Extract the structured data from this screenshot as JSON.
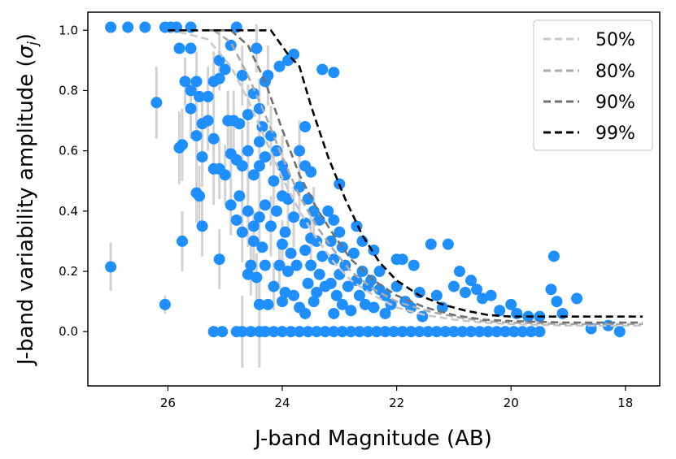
{
  "chart_data": {
    "type": "scatter",
    "xlabel": "J-band Magnitude (AB)",
    "ylabel": "J-band variability amplitude (σ_j)",
    "ylabel_base": "J-band variability amplitude (",
    "ylabel_sigma": "σ",
    "ylabel_sub": "j",
    "ylabel_close": ")",
    "xlim": [
      27.4,
      17.4
    ],
    "ylim": [
      -0.18,
      1.06
    ],
    "xticks": [
      26,
      24,
      22,
      20,
      18
    ],
    "xtick_labels": [
      "26",
      "24",
      "22",
      "20",
      "18"
    ],
    "yticks": [
      0.0,
      0.2,
      0.4,
      0.6,
      0.8,
      1.0
    ],
    "ytick_labels": [
      "0.0",
      "0.2",
      "0.4",
      "0.6",
      "0.8",
      "1.0"
    ],
    "point_color": "#1f8fff",
    "errorbar_color": "#d3d3d3",
    "legend_position": "top-right",
    "curves": [
      {
        "name": "50%",
        "color": "#c8c8c8",
        "x": [
          26.0,
          25.7,
          25.3,
          24.9,
          24.6,
          24.3,
          24.0,
          23.7,
          23.4,
          23.1,
          22.8,
          22.4,
          22.0,
          21.5,
          21.0,
          20.5,
          20.0,
          19.0,
          17.7
        ],
        "y": [
          1.0,
          0.99,
          0.97,
          0.88,
          0.77,
          0.64,
          0.51,
          0.4,
          0.31,
          0.23,
          0.17,
          0.12,
          0.08,
          0.055,
          0.04,
          0.03,
          0.025,
          0.02,
          0.02
        ]
      },
      {
        "name": "80%",
        "color": "#a9a9a9",
        "x": [
          25.6,
          25.2,
          24.9,
          24.6,
          24.3,
          24.0,
          23.7,
          23.4,
          23.1,
          22.8,
          22.4,
          22.0,
          21.5,
          21.0,
          20.5,
          20.0,
          19.0,
          17.7
        ],
        "y": [
          1.0,
          1.0,
          0.96,
          0.85,
          0.72,
          0.58,
          0.45,
          0.35,
          0.27,
          0.2,
          0.14,
          0.1,
          0.07,
          0.05,
          0.035,
          0.03,
          0.025,
          0.025
        ]
      },
      {
        "name": "90%",
        "color": "#707070",
        "x": [
          25.3,
          24.9,
          24.6,
          24.3,
          24.0,
          23.7,
          23.4,
          23.1,
          22.8,
          22.4,
          22.0,
          21.5,
          21.0,
          20.5,
          20.0,
          19.0,
          17.7
        ],
        "y": [
          1.0,
          1.0,
          0.95,
          0.83,
          0.67,
          0.52,
          0.41,
          0.32,
          0.24,
          0.17,
          0.12,
          0.08,
          0.055,
          0.04,
          0.035,
          0.03,
          0.03
        ]
      },
      {
        "name": "99%",
        "color": "#000000",
        "x": [
          26.0,
          24.2,
          23.9,
          23.7,
          23.5,
          23.2,
          22.9,
          22.6,
          22.3,
          22.0,
          21.6,
          21.2,
          20.8,
          20.4,
          20.0,
          19.0,
          17.7
        ],
        "y": [
          1.0,
          1.0,
          0.92,
          0.88,
          0.75,
          0.58,
          0.44,
          0.32,
          0.23,
          0.17,
          0.12,
          0.09,
          0.07,
          0.055,
          0.05,
          0.05,
          0.05
        ]
      }
    ],
    "points": [
      {
        "x": 27.0,
        "y": 1.01
      },
      {
        "x": 26.7,
        "y": 1.01
      },
      {
        "x": 26.4,
        "y": 1.01
      },
      {
        "x": 26.05,
        "y": 1.01
      },
      {
        "x": 25.95,
        "y": 1.01
      },
      {
        "x": 25.85,
        "y": 1.01
      },
      {
        "x": 25.6,
        "y": 1.01
      },
      {
        "x": 24.8,
        "y": 1.01
      },
      {
        "x": 27.0,
        "y": 0.215,
        "e": 0.08
      },
      {
        "x": 26.2,
        "y": 0.76,
        "e": 0.12
      },
      {
        "x": 26.05,
        "y": 0.09,
        "e": 0.03
      },
      {
        "x": 25.75,
        "y": 0.3,
        "e": 0.1
      },
      {
        "x": 25.8,
        "y": 0.94
      },
      {
        "x": 25.6,
        "y": 0.94
      },
      {
        "x": 25.7,
        "y": 0.83,
        "e": 0.08
      },
      {
        "x": 25.6,
        "y": 0.8
      },
      {
        "x": 25.5,
        "y": 0.83,
        "e": 0.1
      },
      {
        "x": 25.45,
        "y": 0.78
      },
      {
        "x": 25.3,
        "y": 0.78,
        "e": 0.1
      },
      {
        "x": 25.6,
        "y": 0.74,
        "e": 0.1
      },
      {
        "x": 25.4,
        "y": 0.69,
        "e": 0.1
      },
      {
        "x": 25.3,
        "y": 0.7,
        "e": 0.1
      },
      {
        "x": 25.5,
        "y": 0.65,
        "e": 0.1
      },
      {
        "x": 25.2,
        "y": 0.64,
        "e": 0.1
      },
      {
        "x": 25.8,
        "y": 0.61,
        "e": 0.12
      },
      {
        "x": 25.75,
        "y": 0.62,
        "e": 0.12
      },
      {
        "x": 25.4,
        "y": 0.58,
        "e": 0.1
      },
      {
        "x": 25.2,
        "y": 0.54,
        "e": 0.12
      },
      {
        "x": 25.1,
        "y": 0.54,
        "e": 0.1
      },
      {
        "x": 25.5,
        "y": 0.46,
        "e": 0.1
      },
      {
        "x": 25.45,
        "y": 0.45,
        "e": 0.1
      },
      {
        "x": 25.4,
        "y": 0.35,
        "e": 0.1
      },
      {
        "x": 25.1,
        "y": 0.24,
        "e": 0.1
      },
      {
        "x": 25.1,
        "y": 0.9,
        "e": 0.1
      },
      {
        "x": 25.0,
        "y": 0.87
      },
      {
        "x": 24.9,
        "y": 0.95
      },
      {
        "x": 24.7,
        "y": 0.85,
        "e": 0.1
      },
      {
        "x": 25.1,
        "y": 0.84
      },
      {
        "x": 25.2,
        "y": 0.83,
        "e": 0.1
      },
      {
        "x": 24.85,
        "y": 0.7,
        "e": 0.1
      },
      {
        "x": 24.75,
        "y": 0.69
      },
      {
        "x": 24.95,
        "y": 0.7,
        "e": 0.1
      },
      {
        "x": 24.6,
        "y": 0.72,
        "e": 0.1
      },
      {
        "x": 24.6,
        "y": 0.6,
        "e": 0.1
      },
      {
        "x": 24.9,
        "y": 0.59,
        "e": 0.1
      },
      {
        "x": 24.8,
        "y": 0.57
      },
      {
        "x": 24.7,
        "y": 0.55,
        "e": 0.12
      },
      {
        "x": 25.0,
        "y": 0.52,
        "e": 0.1
      },
      {
        "x": 24.5,
        "y": 0.52
      },
      {
        "x": 24.4,
        "y": 0.55,
        "e": 0.12
      },
      {
        "x": 24.3,
        "y": 0.58
      },
      {
        "x": 24.9,
        "y": 0.42,
        "e": 0.1
      },
      {
        "x": 24.75,
        "y": 0.45
      },
      {
        "x": 24.6,
        "y": 0.4,
        "e": 0.12
      },
      {
        "x": 24.8,
        "y": 0.37
      },
      {
        "x": 24.7,
        "y": 0.33,
        "e": 0.1
      },
      {
        "x": 24.5,
        "y": 0.35
      },
      {
        "x": 24.4,
        "y": 0.38,
        "e": 0.12
      },
      {
        "x": 24.3,
        "y": 0.42
      },
      {
        "x": 24.2,
        "y": 0.35,
        "e": 0.1
      },
      {
        "x": 24.5,
        "y": 0.3,
        "e": 0.1
      },
      {
        "x": 24.35,
        "y": 0.28
      },
      {
        "x": 24.55,
        "y": 0.22,
        "e": 0.1
      },
      {
        "x": 24.45,
        "y": 0.18,
        "e": 0.08
      },
      {
        "x": 24.6,
        "y": 0.19
      },
      {
        "x": 24.4,
        "y": 0.09,
        "e": 0.1
      },
      {
        "x": 24.25,
        "y": 0.09
      },
      {
        "x": 24.3,
        "y": 0.22
      },
      {
        "x": 24.4,
        "y": 0.63,
        "e": 0.12
      },
      {
        "x": 24.35,
        "y": 0.68
      },
      {
        "x": 24.4,
        "y": 0.74,
        "e": 0.1
      },
      {
        "x": 24.5,
        "y": 0.79
      },
      {
        "x": 24.25,
        "y": 0.85,
        "e": 0.1
      },
      {
        "x": 24.3,
        "y": 0.83
      },
      {
        "x": 24.05,
        "y": 0.88
      },
      {
        "x": 23.9,
        "y": 0.9
      },
      {
        "x": 23.8,
        "y": 0.92
      },
      {
        "x": 24.45,
        "y": 0.94,
        "e": 0.08
      },
      {
        "x": 24.2,
        "y": 0.65,
        "e": 0.1
      },
      {
        "x": 24.1,
        "y": 0.6
      },
      {
        "x": 24.0,
        "y": 0.55,
        "e": 0.1
      },
      {
        "x": 23.95,
        "y": 0.52
      },
      {
        "x": 24.15,
        "y": 0.5,
        "e": 0.1
      },
      {
        "x": 24.0,
        "y": 0.45
      },
      {
        "x": 23.9,
        "y": 0.44,
        "e": 0.1
      },
      {
        "x": 24.1,
        "y": 0.4
      },
      {
        "x": 23.8,
        "y": 0.38,
        "e": 0.1
      },
      {
        "x": 23.95,
        "y": 0.33
      },
      {
        "x": 24.0,
        "y": 0.29,
        "e": 0.08
      },
      {
        "x": 23.85,
        "y": 0.26
      },
      {
        "x": 24.05,
        "y": 0.22,
        "e": 0.08
      },
      {
        "x": 23.9,
        "y": 0.2
      },
      {
        "x": 23.75,
        "y": 0.22
      },
      {
        "x": 24.15,
        "y": 0.15,
        "e": 0.08
      },
      {
        "x": 23.95,
        "y": 0.13
      },
      {
        "x": 24.0,
        "y": 0.1
      },
      {
        "x": 23.8,
        "y": 0.12
      },
      {
        "x": 23.7,
        "y": 0.08
      },
      {
        "x": 23.6,
        "y": 0.68
      },
      {
        "x": 23.7,
        "y": 0.6,
        "e": 0.1
      },
      {
        "x": 23.6,
        "y": 0.55
      },
      {
        "x": 23.5,
        "y": 0.53
      },
      {
        "x": 23.7,
        "y": 0.48,
        "e": 0.1
      },
      {
        "x": 23.55,
        "y": 0.44
      },
      {
        "x": 23.45,
        "y": 0.4,
        "e": 0.08
      },
      {
        "x": 23.6,
        "y": 0.36
      },
      {
        "x": 23.35,
        "y": 0.37
      },
      {
        "x": 23.5,
        "y": 0.31,
        "e": 0.08
      },
      {
        "x": 23.4,
        "y": 0.3
      },
      {
        "x": 23.6,
        "y": 0.27
      },
      {
        "x": 23.3,
        "y": 0.25
      },
      {
        "x": 23.5,
        "y": 0.22
      },
      {
        "x": 23.35,
        "y": 0.19
      },
      {
        "x": 23.55,
        "y": 0.16
      },
      {
        "x": 23.4,
        "y": 0.13
      },
      {
        "x": 23.25,
        "y": 0.15
      },
      {
        "x": 23.45,
        "y": 0.1
      },
      {
        "x": 23.6,
        "y": 0.06
      },
      {
        "x": 23.3,
        "y": 0.87
      },
      {
        "x": 23.1,
        "y": 0.86
      },
      {
        "x": 23.0,
        "y": 0.49
      },
      {
        "x": 23.2,
        "y": 0.4
      },
      {
        "x": 23.1,
        "y": 0.37
      },
      {
        "x": 23.0,
        "y": 0.33
      },
      {
        "x": 23.15,
        "y": 0.3
      },
      {
        "x": 22.95,
        "y": 0.28
      },
      {
        "x": 23.1,
        "y": 0.24
      },
      {
        "x": 22.9,
        "y": 0.22
      },
      {
        "x": 23.0,
        "y": 0.19
      },
      {
        "x": 23.15,
        "y": 0.16
      },
      {
        "x": 22.85,
        "y": 0.15
      },
      {
        "x": 23.05,
        "y": 0.12
      },
      {
        "x": 22.95,
        "y": 0.09
      },
      {
        "x": 23.1,
        "y": 0.06
      },
      {
        "x": 22.8,
        "y": 0.07
      },
      {
        "x": 22.7,
        "y": 0.35
      },
      {
        "x": 22.6,
        "y": 0.3
      },
      {
        "x": 22.75,
        "y": 0.26
      },
      {
        "x": 22.6,
        "y": 0.2
      },
      {
        "x": 22.7,
        "y": 0.17
      },
      {
        "x": 22.5,
        "y": 0.15
      },
      {
        "x": 22.65,
        "y": 0.12
      },
      {
        "x": 22.55,
        "y": 0.09
      },
      {
        "x": 22.4,
        "y": 0.27
      },
      {
        "x": 22.3,
        "y": 0.2
      },
      {
        "x": 22.45,
        "y": 0.17
      },
      {
        "x": 22.3,
        "y": 0.14
      },
      {
        "x": 22.2,
        "y": 0.12
      },
      {
        "x": 22.4,
        "y": 0.08
      },
      {
        "x": 22.1,
        "y": 0.09
      },
      {
        "x": 22.2,
        "y": 0.06
      },
      {
        "x": 22.0,
        "y": 0.24
      },
      {
        "x": 21.9,
        "y": 0.24
      },
      {
        "x": 22.0,
        "y": 0.15
      },
      {
        "x": 21.85,
        "y": 0.1
      },
      {
        "x": 21.7,
        "y": 0.22
      },
      {
        "x": 21.6,
        "y": 0.13
      },
      {
        "x": 21.75,
        "y": 0.08
      },
      {
        "x": 21.55,
        "y": 0.05
      },
      {
        "x": 21.4,
        "y": 0.29
      },
      {
        "x": 21.3,
        "y": 0.12
      },
      {
        "x": 21.2,
        "y": 0.08
      },
      {
        "x": 21.1,
        "y": 0.29
      },
      {
        "x": 21.0,
        "y": 0.15
      },
      {
        "x": 20.9,
        "y": 0.2
      },
      {
        "x": 20.8,
        "y": 0.13
      },
      {
        "x": 20.7,
        "y": 0.17
      },
      {
        "x": 20.6,
        "y": 0.14
      },
      {
        "x": 20.5,
        "y": 0.11
      },
      {
        "x": 20.35,
        "y": 0.12
      },
      {
        "x": 20.2,
        "y": 0.07
      },
      {
        "x": 20.0,
        "y": 0.09
      },
      {
        "x": 19.9,
        "y": 0.06
      },
      {
        "x": 19.7,
        "y": 0.05
      },
      {
        "x": 19.5,
        "y": 0.05
      },
      {
        "x": 19.25,
        "y": 0.25
      },
      {
        "x": 19.3,
        "y": 0.14
      },
      {
        "x": 19.2,
        "y": 0.1
      },
      {
        "x": 19.1,
        "y": 0.06
      },
      {
        "x": 18.85,
        "y": 0.11
      },
      {
        "x": 18.6,
        "y": 0.01
      },
      {
        "x": 18.3,
        "y": 0.02
      },
      {
        "x": 18.1,
        "y": 0.0
      },
      {
        "x": 25.2,
        "y": 0.0
      },
      {
        "x": 25.05,
        "y": 0.0
      },
      {
        "x": 24.8,
        "y": 0.0
      },
      {
        "x": 24.7,
        "y": 0.0,
        "e": 0.12
      },
      {
        "x": 24.55,
        "y": 0.0
      },
      {
        "x": 24.4,
        "y": 0.0,
        "e": 0.12
      },
      {
        "x": 24.3,
        "y": 0.0
      },
      {
        "x": 24.15,
        "y": 0.0
      },
      {
        "x": 24.0,
        "y": 0.0
      },
      {
        "x": 23.85,
        "y": 0.0
      },
      {
        "x": 23.7,
        "y": 0.0
      },
      {
        "x": 23.55,
        "y": 0.0
      },
      {
        "x": 23.4,
        "y": 0.0
      },
      {
        "x": 23.25,
        "y": 0.0
      },
      {
        "x": 23.1,
        "y": 0.0
      },
      {
        "x": 22.95,
        "y": 0.0
      },
      {
        "x": 22.8,
        "y": 0.0
      },
      {
        "x": 22.65,
        "y": 0.0
      },
      {
        "x": 22.5,
        "y": 0.0
      },
      {
        "x": 22.35,
        "y": 0.0
      },
      {
        "x": 22.2,
        "y": 0.0
      },
      {
        "x": 22.05,
        "y": 0.0
      },
      {
        "x": 21.9,
        "y": 0.0
      },
      {
        "x": 21.75,
        "y": 0.0
      },
      {
        "x": 21.6,
        "y": 0.0
      },
      {
        "x": 21.45,
        "y": 0.0
      },
      {
        "x": 21.3,
        "y": 0.0
      },
      {
        "x": 21.15,
        "y": 0.0
      },
      {
        "x": 21.0,
        "y": 0.0
      },
      {
        "x": 20.85,
        "y": 0.0
      },
      {
        "x": 20.7,
        "y": 0.0
      },
      {
        "x": 20.55,
        "y": 0.0
      },
      {
        "x": 20.4,
        "y": 0.0
      },
      {
        "x": 20.25,
        "y": 0.0
      },
      {
        "x": 20.1,
        "y": 0.0
      },
      {
        "x": 19.95,
        "y": 0.0
      },
      {
        "x": 19.8,
        "y": 0.0
      },
      {
        "x": 19.65,
        "y": 0.0
      },
      {
        "x": 19.5,
        "y": 0.0
      }
    ]
  },
  "legend": {
    "items": [
      {
        "label": "50%",
        "color": "#c8c8c8"
      },
      {
        "label": "80%",
        "color": "#a9a9a9"
      },
      {
        "label": "90%",
        "color": "#707070"
      },
      {
        "label": "99%",
        "color": "#000000"
      }
    ]
  }
}
